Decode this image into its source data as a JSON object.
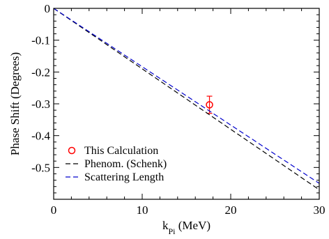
{
  "chart_data": {
    "type": "line",
    "xlabel": "k",
    "xlabel_sub": "Pi",
    "xlabel_unit": " (MeV)",
    "ylabel": "Phase Shift (Degrees)",
    "xlim": [
      0,
      30
    ],
    "ylim": [
      -0.6,
      0
    ],
    "xticks": [
      0,
      10,
      20,
      30
    ],
    "yticks": [
      0,
      -0.1,
      -0.2,
      -0.3,
      -0.4,
      -0.5
    ],
    "x_minor_step": 2,
    "y_minor_step": 0.02,
    "grid": false,
    "legend_position": "bottom-left",
    "series": [
      {
        "name": "This Calculation",
        "kind": "point",
        "marker": "circle",
        "color": "#ff0000",
        "x": [
          17.6
        ],
        "y": [
          -0.303
        ],
        "err": [
          0.027
        ]
      },
      {
        "name": "Phenom. (Schenk)",
        "kind": "line",
        "dash": "dashed",
        "color": "#000000",
        "x": [
          0,
          30
        ],
        "y": [
          0,
          -0.57
        ]
      },
      {
        "name": "Scattering Length",
        "kind": "line",
        "dash": "dashed",
        "color": "#0000cc",
        "x": [
          0,
          30
        ],
        "y": [
          0,
          -0.55
        ]
      }
    ]
  }
}
